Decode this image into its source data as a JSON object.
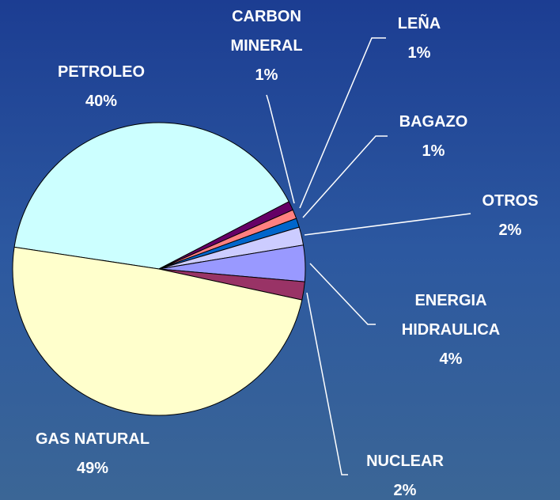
{
  "chart_data": {
    "type": "pie",
    "categories": [
      "PETROLEO",
      "CARBON MINERAL",
      "LEÑA",
      "BAGAZO",
      "OTROS",
      "ENERGIA HIDRAULICA",
      "NUCLEAR",
      "GAS NATURAL"
    ],
    "values": [
      40,
      1,
      1,
      1,
      2,
      4,
      2,
      49
    ],
    "value_labels": [
      "40%",
      "1%",
      "1%",
      "1%",
      "2%",
      "4%",
      "2%",
      "49%"
    ],
    "colors": [
      "#ccffff",
      "#660066",
      "#ff8080",
      "#0066cc",
      "#ccccff",
      "#9999ff",
      "#993366",
      "#ffffcc"
    ]
  }
}
